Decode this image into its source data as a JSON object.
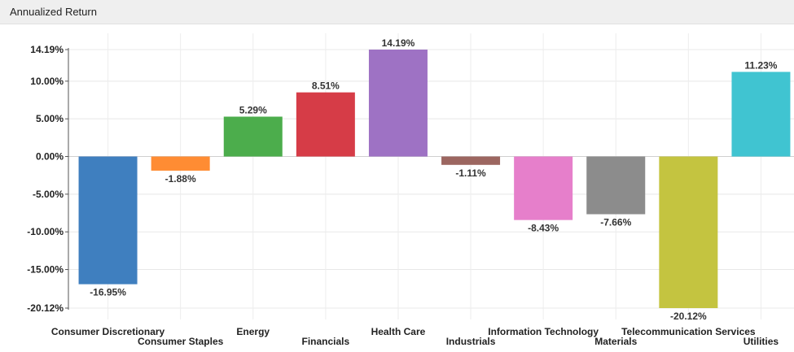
{
  "panel": {
    "title": "Annualized Return"
  },
  "chart_data": {
    "type": "bar",
    "title": "",
    "xlabel": "",
    "ylabel": "",
    "ylim": [
      -20.12,
      14.19
    ],
    "grid": true,
    "y_ticks": [
      {
        "value": 14.19,
        "label": "14.19%"
      },
      {
        "value": 10,
        "label": "10.00%"
      },
      {
        "value": 5,
        "label": "5.00%"
      },
      {
        "value": 0,
        "label": "0.00%"
      },
      {
        "value": -5,
        "label": "-5.00%"
      },
      {
        "value": -10,
        "label": "-10.00%"
      },
      {
        "value": -15,
        "label": "-15.00%"
      },
      {
        "value": -20.12,
        "label": "-20.12%"
      }
    ],
    "bars": [
      {
        "category": "Consumer Discretionary",
        "value": -16.95,
        "label": "-16.95%",
        "color": "#3f7fbf"
      },
      {
        "category": "Consumer Staples",
        "value": -1.88,
        "label": "-1.88%",
        "color": "#ff8c33"
      },
      {
        "category": "Energy",
        "value": 5.29,
        "label": "5.29%",
        "color": "#4cad4c"
      },
      {
        "category": "Financials",
        "value": 8.51,
        "label": "8.51%",
        "color": "#d63c47"
      },
      {
        "category": "Health Care",
        "value": 14.19,
        "label": "14.19%",
        "color": "#9e72c4"
      },
      {
        "category": "Industrials",
        "value": -1.11,
        "label": "-1.11%",
        "color": "#9c6660"
      },
      {
        "category": "Information Technology",
        "value": -8.43,
        "label": "-8.43%",
        "color": "#e67fcb"
      },
      {
        "category": "Materials",
        "value": -7.66,
        "label": "-7.66%",
        "color": "#8c8c8c"
      },
      {
        "category": "Telecommunication Services",
        "value": -20.12,
        "label": "-20.12%",
        "color": "#c4c440"
      },
      {
        "category": "Utilities",
        "value": 11.23,
        "label": "11.23%",
        "color": "#40c4d1"
      }
    ]
  }
}
